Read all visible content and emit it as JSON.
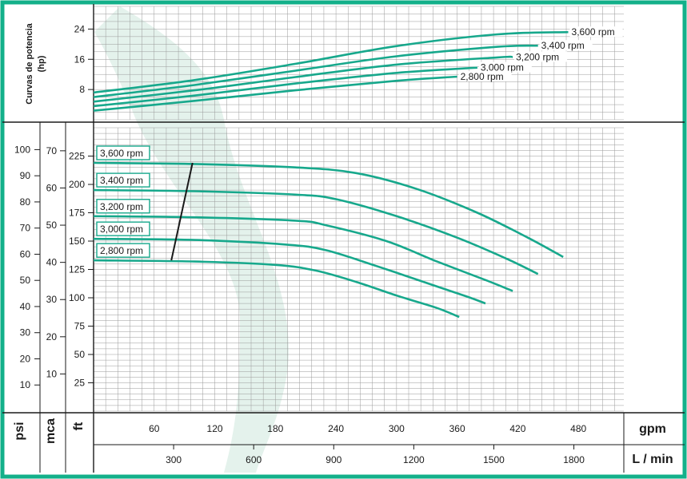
{
  "colors": {
    "border": "#13b08a",
    "curve": "#17a88c",
    "grid": "#9a9a9a",
    "band": "#e4f2ec",
    "line": "#1a1a1a"
  },
  "labels": {
    "power_title_1": "Curvas de potencia",
    "power_title_2": "(hp)",
    "psi": "psi",
    "mca": "mca",
    "ft": "ft",
    "gpm": "gpm",
    "lmin": "L / min"
  },
  "chart_data": [
    {
      "type": "line",
      "title": "Curvas de potencia (hp)",
      "ylabel": "hp",
      "xlabel": "gpm",
      "xlim": [
        0,
        525
      ],
      "ylim": [
        0,
        30
      ],
      "y_ticks": [
        8,
        16,
        24
      ],
      "series": [
        {
          "name": "3,600 rpm",
          "x": [
            0,
            100,
            200,
            300,
            400,
            470
          ],
          "y": [
            7.2,
            10.5,
            14.8,
            19.5,
            22.6,
            23.2
          ]
        },
        {
          "name": "3,400 rpm",
          "x": [
            0,
            100,
            200,
            300,
            400,
            440
          ],
          "y": [
            6.0,
            9.2,
            13.0,
            16.8,
            19.3,
            19.6
          ]
        },
        {
          "name": "3,200 rpm",
          "x": [
            0,
            100,
            200,
            300,
            400,
            415
          ],
          "y": [
            4.8,
            7.8,
            11.3,
            14.6,
            16.5,
            16.6
          ]
        },
        {
          "name": "3,000 rpm",
          "x": [
            0,
            100,
            200,
            300,
            380
          ],
          "y": [
            3.6,
            6.4,
            9.6,
            12.4,
            13.8
          ]
        },
        {
          "name": "2,800 rpm",
          "x": [
            0,
            100,
            200,
            300,
            360
          ],
          "y": [
            2.4,
            5.0,
            7.8,
            10.3,
            11.4
          ]
        }
      ]
    },
    {
      "type": "line",
      "xlabel": "gpm",
      "ylabel": "ft",
      "xlim": [
        0,
        525
      ],
      "ylim": [
        0,
        250
      ],
      "x_ticks": [
        60,
        120,
        180,
        240,
        300,
        360,
        420,
        480
      ],
      "x2_label": "L / min",
      "x2_ticks": [
        300,
        600,
        900,
        1200,
        1500,
        1800
      ],
      "y_ticks_ft": [
        25,
        50,
        75,
        100,
        125,
        150,
        175,
        200,
        225
      ],
      "y_ticks_mca": [
        10,
        20,
        30,
        40,
        50,
        60,
        70
      ],
      "y_ticks_psi": [
        10,
        20,
        30,
        40,
        50,
        60,
        70,
        80,
        90,
        100
      ],
      "series": [
        {
          "name": "3,600 rpm",
          "x": [
            0,
            100,
            200,
            260,
            320,
            380,
            430,
            465
          ],
          "y": [
            219,
            218,
            215,
            210,
            196,
            175,
            153,
            136
          ]
        },
        {
          "name": "3,400 rpm",
          "x": [
            0,
            100,
            200,
            240,
            300,
            360,
            410,
            440
          ],
          "y": [
            195,
            194,
            191,
            187,
            172,
            153,
            134,
            121
          ]
        },
        {
          "name": "3,200 rpm",
          "x": [
            0,
            100,
            200,
            230,
            290,
            340,
            390,
            415
          ],
          "y": [
            172,
            171,
            168,
            164,
            150,
            132,
            115,
            106
          ]
        },
        {
          "name": "3,000 rpm",
          "x": [
            0,
            100,
            190,
            230,
            280,
            330,
            370,
            388
          ],
          "y": [
            152,
            151,
            147,
            142,
            128,
            113,
            101,
            95
          ]
        },
        {
          "name": "2,800 rpm",
          "x": [
            0,
            100,
            180,
            220,
            260,
            300,
            340,
            362
          ],
          "y": [
            133,
            132,
            129,
            124,
            114,
            102,
            91,
            83
          ]
        }
      ],
      "annotation_line": {
        "x": [
          77,
          98
        ],
        "y": [
          133,
          219
        ]
      }
    }
  ]
}
